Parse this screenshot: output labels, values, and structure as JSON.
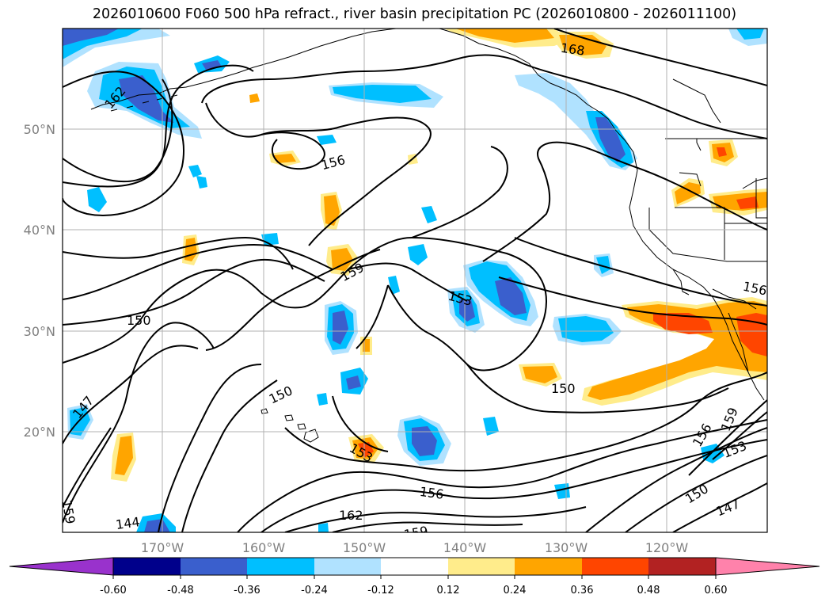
{
  "title": "2026010600 F060 500 hPa refract., river basin precipitation PC (2026010800 - 2026011100)",
  "map": {
    "lon_labels": [
      "170°W",
      "160°W",
      "150°W",
      "140°W",
      "130°W",
      "120°W"
    ],
    "lat_labels": [
      "50°N",
      "40°N",
      "30°N",
      "20°N"
    ],
    "contour_labels": [
      "162",
      "168",
      "156",
      "159",
      "153",
      "150",
      "147",
      "144",
      "150",
      "156",
      "159",
      "153",
      "150",
      "147",
      "156",
      "162",
      "150",
      "159",
      "156",
      "153",
      "159"
    ]
  },
  "colorbar": {
    "ticks": [
      "-0.60",
      "-0.48",
      "-0.36",
      "-0.24",
      "-0.12",
      "0.12",
      "0.24",
      "0.36",
      "0.48",
      "0.60"
    ],
    "colors": [
      "#9932cc",
      "#00008b",
      "#3a5fcd",
      "#00bfff",
      "#b0e2ff",
      "#ffffff",
      "#ffec8b",
      "#ffa500",
      "#ff4500",
      "#b22222",
      "#ff82ab"
    ]
  }
}
